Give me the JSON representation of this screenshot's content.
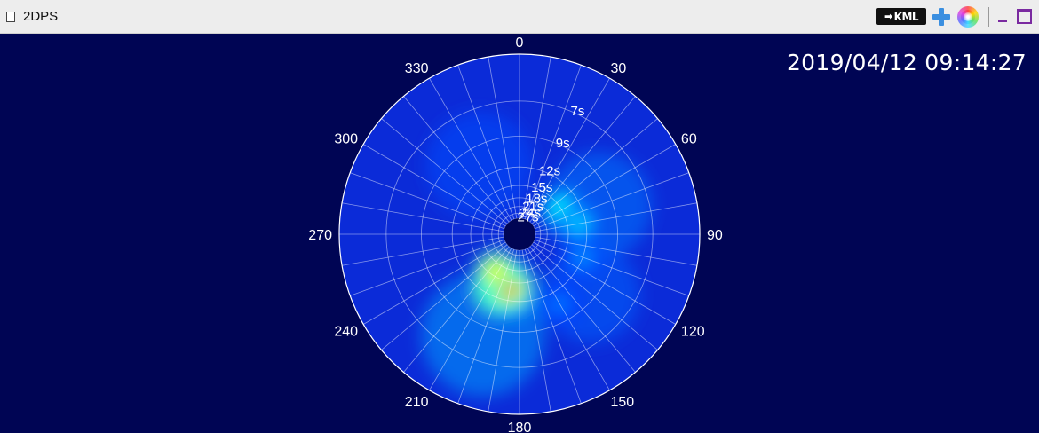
{
  "app": {
    "title": "2DPS"
  },
  "toolbar": {
    "export_label": "KML",
    "export_icon": "arrow-right-icon",
    "add_icon": "plus-icon",
    "palette_icon": "color-wheel-icon"
  },
  "timestamp": "2019/04/12 09:14:27",
  "chart_data": {
    "type": "heatmap",
    "subtype": "polar",
    "title": "",
    "angle_ticks": [
      "0",
      "30",
      "60",
      "90",
      "120",
      "150",
      "180",
      "210",
      "240",
      "270",
      "300",
      "330"
    ],
    "angle_tick_step_deg": 30,
    "angle_grid_step_deg": 10,
    "radial_ticks": [
      "7s",
      "9s",
      "12s",
      "15s",
      "18s",
      "21s",
      "24s",
      "27s"
    ],
    "radial_tick_angle_deg": 25,
    "colormap": "jet",
    "background_color": "#000554",
    "energy_peaks": [
      {
        "direction_deg": 200,
        "period_s": 13.5,
        "level": 1.0
      },
      {
        "direction_deg": 192,
        "period_s": 14,
        "level": 0.85
      },
      {
        "direction_deg": 212,
        "period_s": 16,
        "level": 0.6
      },
      {
        "direction_deg": 60,
        "period_s": 15,
        "level": 0.38
      },
      {
        "direction_deg": 80,
        "period_s": 13,
        "level": 0.32
      },
      {
        "direction_deg": 110,
        "period_s": 12,
        "level": 0.26
      },
      {
        "direction_deg": 150,
        "period_s": 10.5,
        "level": 0.24
      }
    ]
  }
}
